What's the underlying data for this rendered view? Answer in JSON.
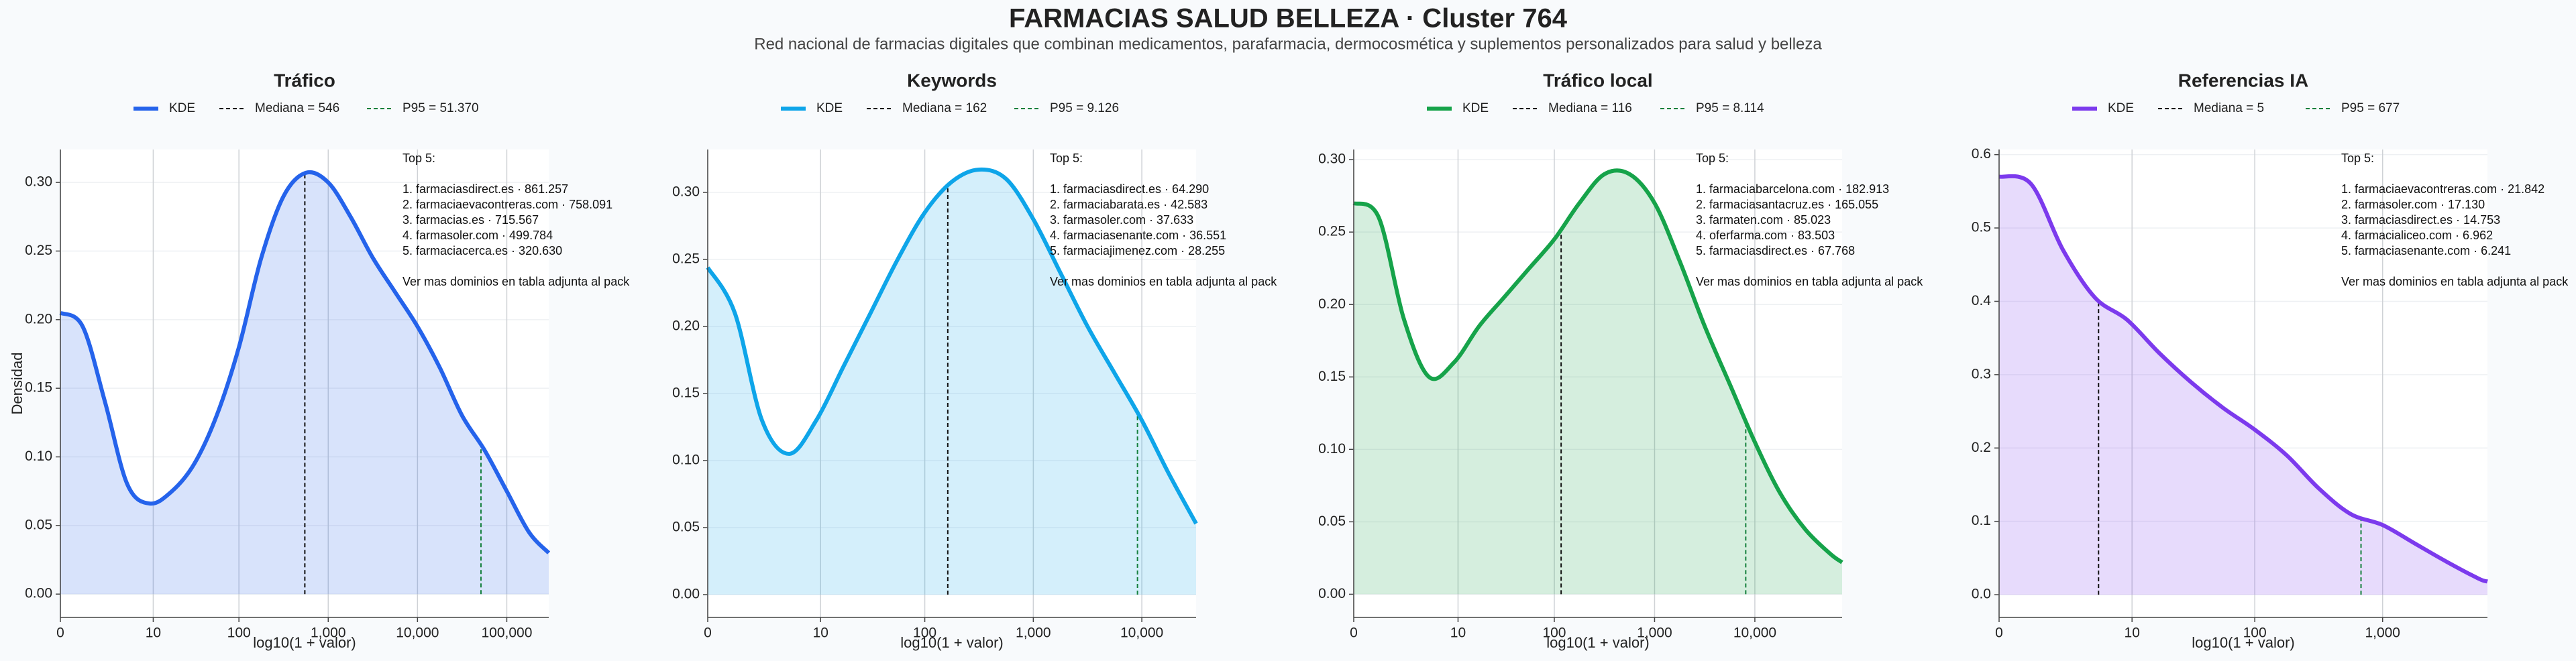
{
  "title": "FARMACIAS SALUD BELLEZA · Cluster 764",
  "subtitle": "Red nacional de farmacias digitales que combinan medicamentos, parafarmacia, dermocosmética y suplementos personalizados para salud y belleza",
  "chart_data": [
    {
      "type": "area",
      "title": "Tráfico",
      "x_label": "log10(1 + valor)",
      "y_label": "Densidad",
      "x": [
        0,
        0.25,
        0.5,
        0.75,
        1.0,
        1.25,
        1.5,
        1.75,
        2.0,
        2.25,
        2.5,
        2.75,
        3.0,
        3.25,
        3.5,
        3.75,
        4.0,
        4.25,
        4.5,
        4.75,
        5.0,
        5.25,
        5.47
      ],
      "series": [
        {
          "name": "KDE",
          "color": "#2563eb",
          "values": [
            0.205,
            0.195,
            0.14,
            0.08,
            0.066,
            0.075,
            0.095,
            0.13,
            0.18,
            0.245,
            0.29,
            0.307,
            0.3,
            0.275,
            0.245,
            0.22,
            0.195,
            0.165,
            0.13,
            0.105,
            0.075,
            0.045,
            0.03
          ]
        }
      ],
      "median": {
        "label": "Mediana = 546",
        "x": 2.738,
        "color": "#111111"
      },
      "p95": {
        "label": "P95 = 51.370",
        "x": 4.711,
        "color": "#15803d"
      },
      "annotation": {
        "heading": "Top 5:",
        "items": [
          "1. farmaciasdirect.es · 861.257",
          "2. farmaciaevacontreras.com · 758.091",
          "3. farmacias.es · 715.567",
          "4. farmasoler.com · 499.784",
          "5. farmaciacerca.es · 320.630"
        ],
        "note": "Ver mas dominios en tabla adjunta al pack"
      },
      "xlim": [
        0,
        5.47
      ],
      "ylim": [
        -0.017,
        0.324
      ],
      "xticks": [
        {
          "value": 0,
          "label": "0"
        },
        {
          "value": 1.04,
          "label": "10"
        },
        {
          "value": 2,
          "label": "100"
        },
        {
          "value": 3,
          "label": "1,000"
        },
        {
          "value": 4,
          "label": "10,000"
        },
        {
          "value": 5,
          "label": "100,000"
        }
      ],
      "yticks": [
        {
          "value": 0,
          "label": "0.00"
        },
        {
          "value": 0.05,
          "label": "0.05"
        },
        {
          "value": 0.1,
          "label": "0.10"
        },
        {
          "value": 0.15,
          "label": "0.15"
        },
        {
          "value": 0.2,
          "label": "0.20"
        },
        {
          "value": 0.25,
          "label": "0.25"
        },
        {
          "value": 0.3,
          "label": "0.30"
        }
      ],
      "grid": true
    },
    {
      "type": "area",
      "title": "Keywords",
      "x_label": "log10(1 + valor)",
      "x": [
        0,
        0.25,
        0.5,
        0.75,
        1.0,
        1.25,
        1.5,
        1.75,
        2.0,
        2.25,
        2.5,
        2.75,
        3.0,
        3.25,
        3.5,
        3.75,
        4.0,
        4.25,
        4.5
      ],
      "series": [
        {
          "name": "KDE",
          "color": "#0ea5e9",
          "values": [
            0.244,
            0.21,
            0.13,
            0.105,
            0.13,
            0.17,
            0.21,
            0.25,
            0.285,
            0.308,
            0.317,
            0.31,
            0.28,
            0.24,
            0.2,
            0.165,
            0.13,
            0.09,
            0.053
          ]
        }
      ],
      "median": {
        "label": "Mediana = 162",
        "x": 2.212,
        "color": "#111111"
      },
      "p95": {
        "label": "P95 = 9.126",
        "x": 3.96,
        "color": "#15803d"
      },
      "annotation": {
        "heading": "Top 5:",
        "items": [
          "1. farmaciasdirect.es · 64.290",
          "2. farmaciabarata.es · 42.583",
          "3. farmasoler.com · 37.633",
          "4. farmaciasenante.com · 36.551",
          "5. farmaciajimenez.com · 28.255"
        ],
        "note": "Ver mas dominios en tabla adjunta al pack"
      },
      "xlim": [
        0,
        4.5
      ],
      "ylim": [
        -0.017,
        0.332
      ],
      "xticks": [
        {
          "value": 0,
          "label": "0"
        },
        {
          "value": 1.04,
          "label": "10"
        },
        {
          "value": 2,
          "label": "100"
        },
        {
          "value": 3,
          "label": "1,000"
        },
        {
          "value": 4,
          "label": "10,000"
        }
      ],
      "yticks": [
        {
          "value": 0,
          "label": "0.00"
        },
        {
          "value": 0.05,
          "label": "0.05"
        },
        {
          "value": 0.1,
          "label": "0.10"
        },
        {
          "value": 0.15,
          "label": "0.15"
        },
        {
          "value": 0.2,
          "label": "0.20"
        },
        {
          "value": 0.25,
          "label": "0.25"
        },
        {
          "value": 0.3,
          "label": "0.30"
        }
      ],
      "grid": true
    },
    {
      "type": "area",
      "title": "Tráfico local",
      "x_label": "log10(1 + valor)",
      "x": [
        0,
        0.25,
        0.5,
        0.75,
        1.0,
        1.25,
        1.5,
        1.75,
        2.0,
        2.25,
        2.5,
        2.75,
        3.0,
        3.25,
        3.5,
        3.75,
        4.0,
        4.25,
        4.5,
        4.75,
        4.87
      ],
      "series": [
        {
          "name": "KDE",
          "color": "#16a34a",
          "values": [
            0.27,
            0.26,
            0.19,
            0.15,
            0.16,
            0.185,
            0.205,
            0.225,
            0.245,
            0.27,
            0.29,
            0.29,
            0.27,
            0.23,
            0.185,
            0.145,
            0.105,
            0.07,
            0.045,
            0.028,
            0.022
          ]
        }
      ],
      "median": {
        "label": "Mediana = 116",
        "x": 2.068,
        "color": "#111111"
      },
      "p95": {
        "label": "P95 = 8.114",
        "x": 3.909,
        "color": "#15803d"
      },
      "annotation": {
        "heading": "Top 5:",
        "items": [
          "1. farmaciabarcelona.com · 182.913",
          "2. farmaciasantacruz.es · 165.055",
          "3. farmaten.com · 85.023",
          "4. oferfarma.com · 83.503",
          "5. farmaciasdirect.es · 67.768"
        ],
        "note": "Ver mas dominios en tabla adjunta al pack"
      },
      "xlim": [
        0,
        4.87
      ],
      "ylim": [
        -0.016,
        0.307
      ],
      "xticks": [
        {
          "value": 0,
          "label": "0"
        },
        {
          "value": 1.04,
          "label": "10"
        },
        {
          "value": 2,
          "label": "100"
        },
        {
          "value": 3,
          "label": "1,000"
        },
        {
          "value": 4,
          "label": "10,000"
        }
      ],
      "yticks": [
        {
          "value": 0,
          "label": "0.00"
        },
        {
          "value": 0.05,
          "label": "0.05"
        },
        {
          "value": 0.1,
          "label": "0.10"
        },
        {
          "value": 0.15,
          "label": "0.15"
        },
        {
          "value": 0.2,
          "label": "0.20"
        },
        {
          "value": 0.25,
          "label": "0.25"
        },
        {
          "value": 0.3,
          "label": "0.30"
        }
      ],
      "grid": true
    },
    {
      "type": "area",
      "title": "Referencias IA",
      "x_label": "log10(1 + valor)",
      "x": [
        0,
        0.25,
        0.5,
        0.75,
        1.0,
        1.25,
        1.5,
        1.75,
        2.0,
        2.25,
        2.5,
        2.75,
        3.0,
        3.25,
        3.5,
        3.75,
        3.82
      ],
      "series": [
        {
          "name": "KDE",
          "color": "#7c3aed",
          "values": [
            0.57,
            0.56,
            0.47,
            0.405,
            0.375,
            0.33,
            0.29,
            0.255,
            0.225,
            0.19,
            0.145,
            0.11,
            0.095,
            0.07,
            0.045,
            0.022,
            0.018
          ]
        }
      ],
      "median": {
        "label": "Mediana = 5",
        "x": 0.778,
        "color": "#111111"
      },
      "p95": {
        "label": "P95 = 677",
        "x": 2.831,
        "color": "#15803d"
      },
      "annotation": {
        "heading": "Top 5:",
        "items": [
          "1. farmaciaevacontreras.com · 21.842",
          "2. farmasoler.com · 17.130",
          "3. farmaciasdirect.es · 14.753",
          "4. farmacialiceo.com · 6.962",
          "5. farmaciasenante.com · 6.241"
        ],
        "note": "Ver mas dominios en tabla adjunta al pack"
      },
      "xlim": [
        0,
        3.82
      ],
      "ylim": [
        -0.031,
        0.607
      ],
      "xticks": [
        {
          "value": 0,
          "label": "0"
        },
        {
          "value": 1.04,
          "label": "10"
        },
        {
          "value": 2,
          "label": "100"
        },
        {
          "value": 3,
          "label": "1,000"
        }
      ],
      "yticks": [
        {
          "value": 0,
          "label": "0.0"
        },
        {
          "value": 0.1,
          "label": "0.1"
        },
        {
          "value": 0.2,
          "label": "0.2"
        },
        {
          "value": 0.3,
          "label": "0.3"
        },
        {
          "value": 0.4,
          "label": "0.4"
        },
        {
          "value": 0.5,
          "label": "0.5"
        },
        {
          "value": 0.6,
          "label": "0.6"
        }
      ],
      "grid": true
    }
  ]
}
